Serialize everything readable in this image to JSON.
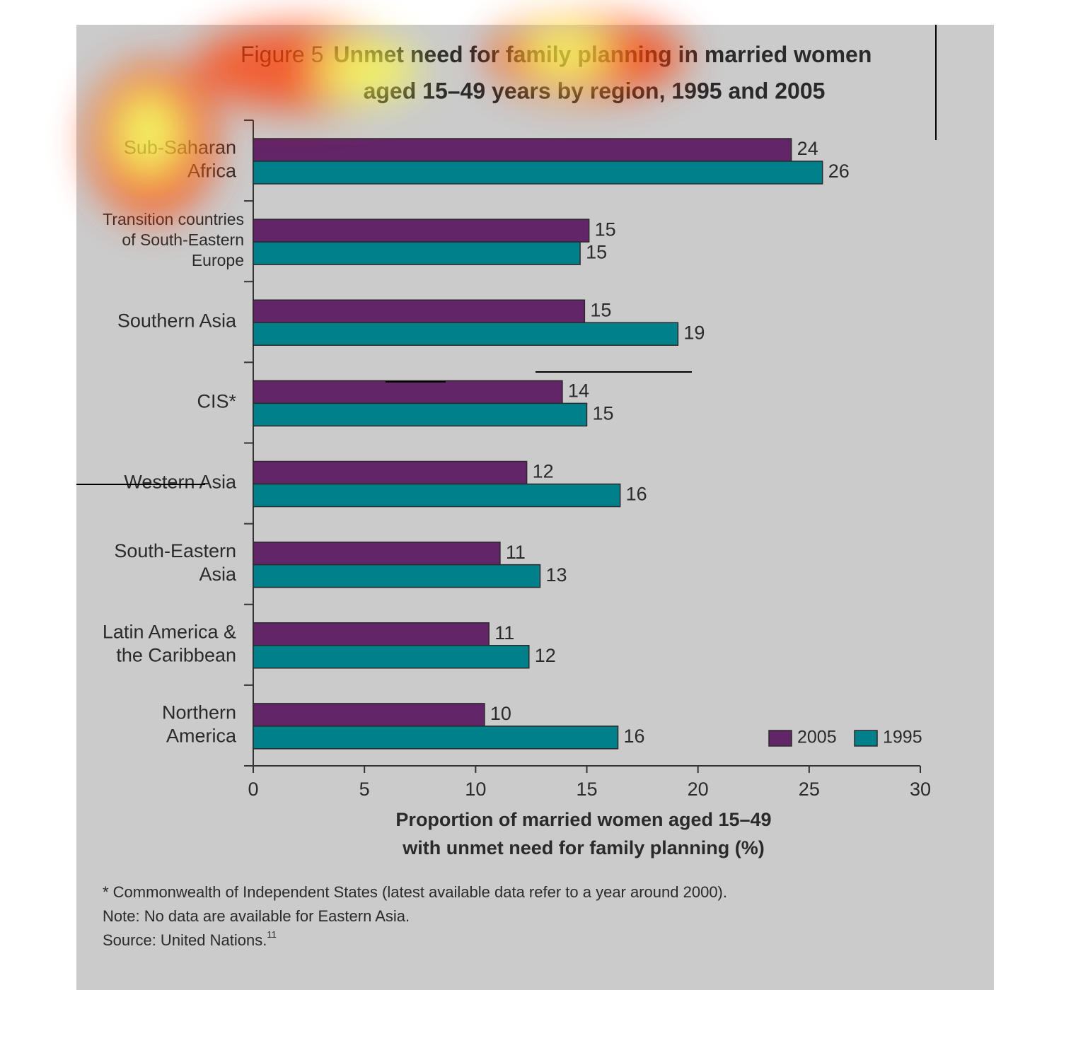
{
  "chart_data": {
    "type": "bar",
    "orientation": "horizontal",
    "figure_label": "Figure 5",
    "title": [
      "Unmet need for family planning in married women",
      "aged 15–49 years by region, 1995 and 2005"
    ],
    "categories": [
      "Sub-Saharan\nAfrica",
      "Transition countries\nof South-Eastern\nEurope",
      "Southern Asia",
      "CIS*",
      "Western Asia",
      "South-Eastern\nAsia",
      "Latin America &\nthe Caribbean",
      "Northern\nAmerica"
    ],
    "series": [
      {
        "name": "2005",
        "color": "#622567",
        "values": [
          24.2,
          15.1,
          14.9,
          13.9,
          12.3,
          11.1,
          10.6,
          10.4
        ],
        "value_labels": [
          "24",
          "15",
          "15",
          "14",
          "12",
          "11",
          "11",
          "10"
        ]
      },
      {
        "name": "1995",
        "color": "#00808b",
        "values": [
          25.6,
          14.7,
          19.1,
          15.0,
          16.5,
          12.9,
          12.4,
          16.4
        ],
        "value_labels": [
          "26",
          "15",
          "19",
          "15",
          "16",
          "13",
          "12",
          "16"
        ]
      }
    ],
    "xlim": [
      0,
      30
    ],
    "xticks": [
      0,
      5,
      10,
      15,
      20,
      25,
      30
    ],
    "xlabel": [
      "Proportion of married women aged 15–49",
      "with unmet need for family planning (%)"
    ],
    "legend": "bottom-right",
    "footnotes": [
      "* Commonwealth of Independent States (latest available data refer to a year around 2000).",
      "Note: No data are available for Eastern Asia."
    ],
    "source": "Source: United Nations.",
    "source_ref": "11"
  }
}
